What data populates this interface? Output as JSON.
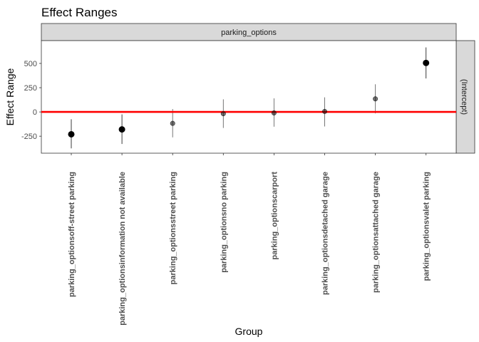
{
  "chart_data": {
    "type": "scatter",
    "title": "Effect Ranges",
    "xlabel": "Group",
    "ylabel": "Effect Range",
    "facet_top": "parking_options",
    "facet_right": "(Intercept)",
    "categories": [
      "parking_optionsoff-street parking",
      "parking_optionsinformation not available",
      "parking_optionsstreet parking",
      "parking_optionsno parking",
      "parking_optionscarport",
      "parking_optionsdetached garage",
      "parking_optionsattached garage",
      "parking_optionsvalet parking"
    ],
    "series": [
      {
        "estimate": [
          -230,
          -180,
          -118,
          -18,
          -10,
          5,
          135,
          505
        ],
        "lower": [
          -375,
          -330,
          -262,
          -165,
          -152,
          -150,
          -15,
          345
        ],
        "upper": [
          -75,
          -25,
          30,
          130,
          140,
          150,
          285,
          665
        ]
      }
    ],
    "point_opacity": [
      1.0,
      1.0,
      0.55,
      0.55,
      0.55,
      0.55,
      0.55,
      1.0
    ],
    "reference_line": 0,
    "reference_line_color": "#ff0000",
    "yticks": [
      -250,
      0,
      250,
      500
    ],
    "ylim": [
      -425,
      735
    ],
    "grid": false,
    "legend": "none"
  }
}
